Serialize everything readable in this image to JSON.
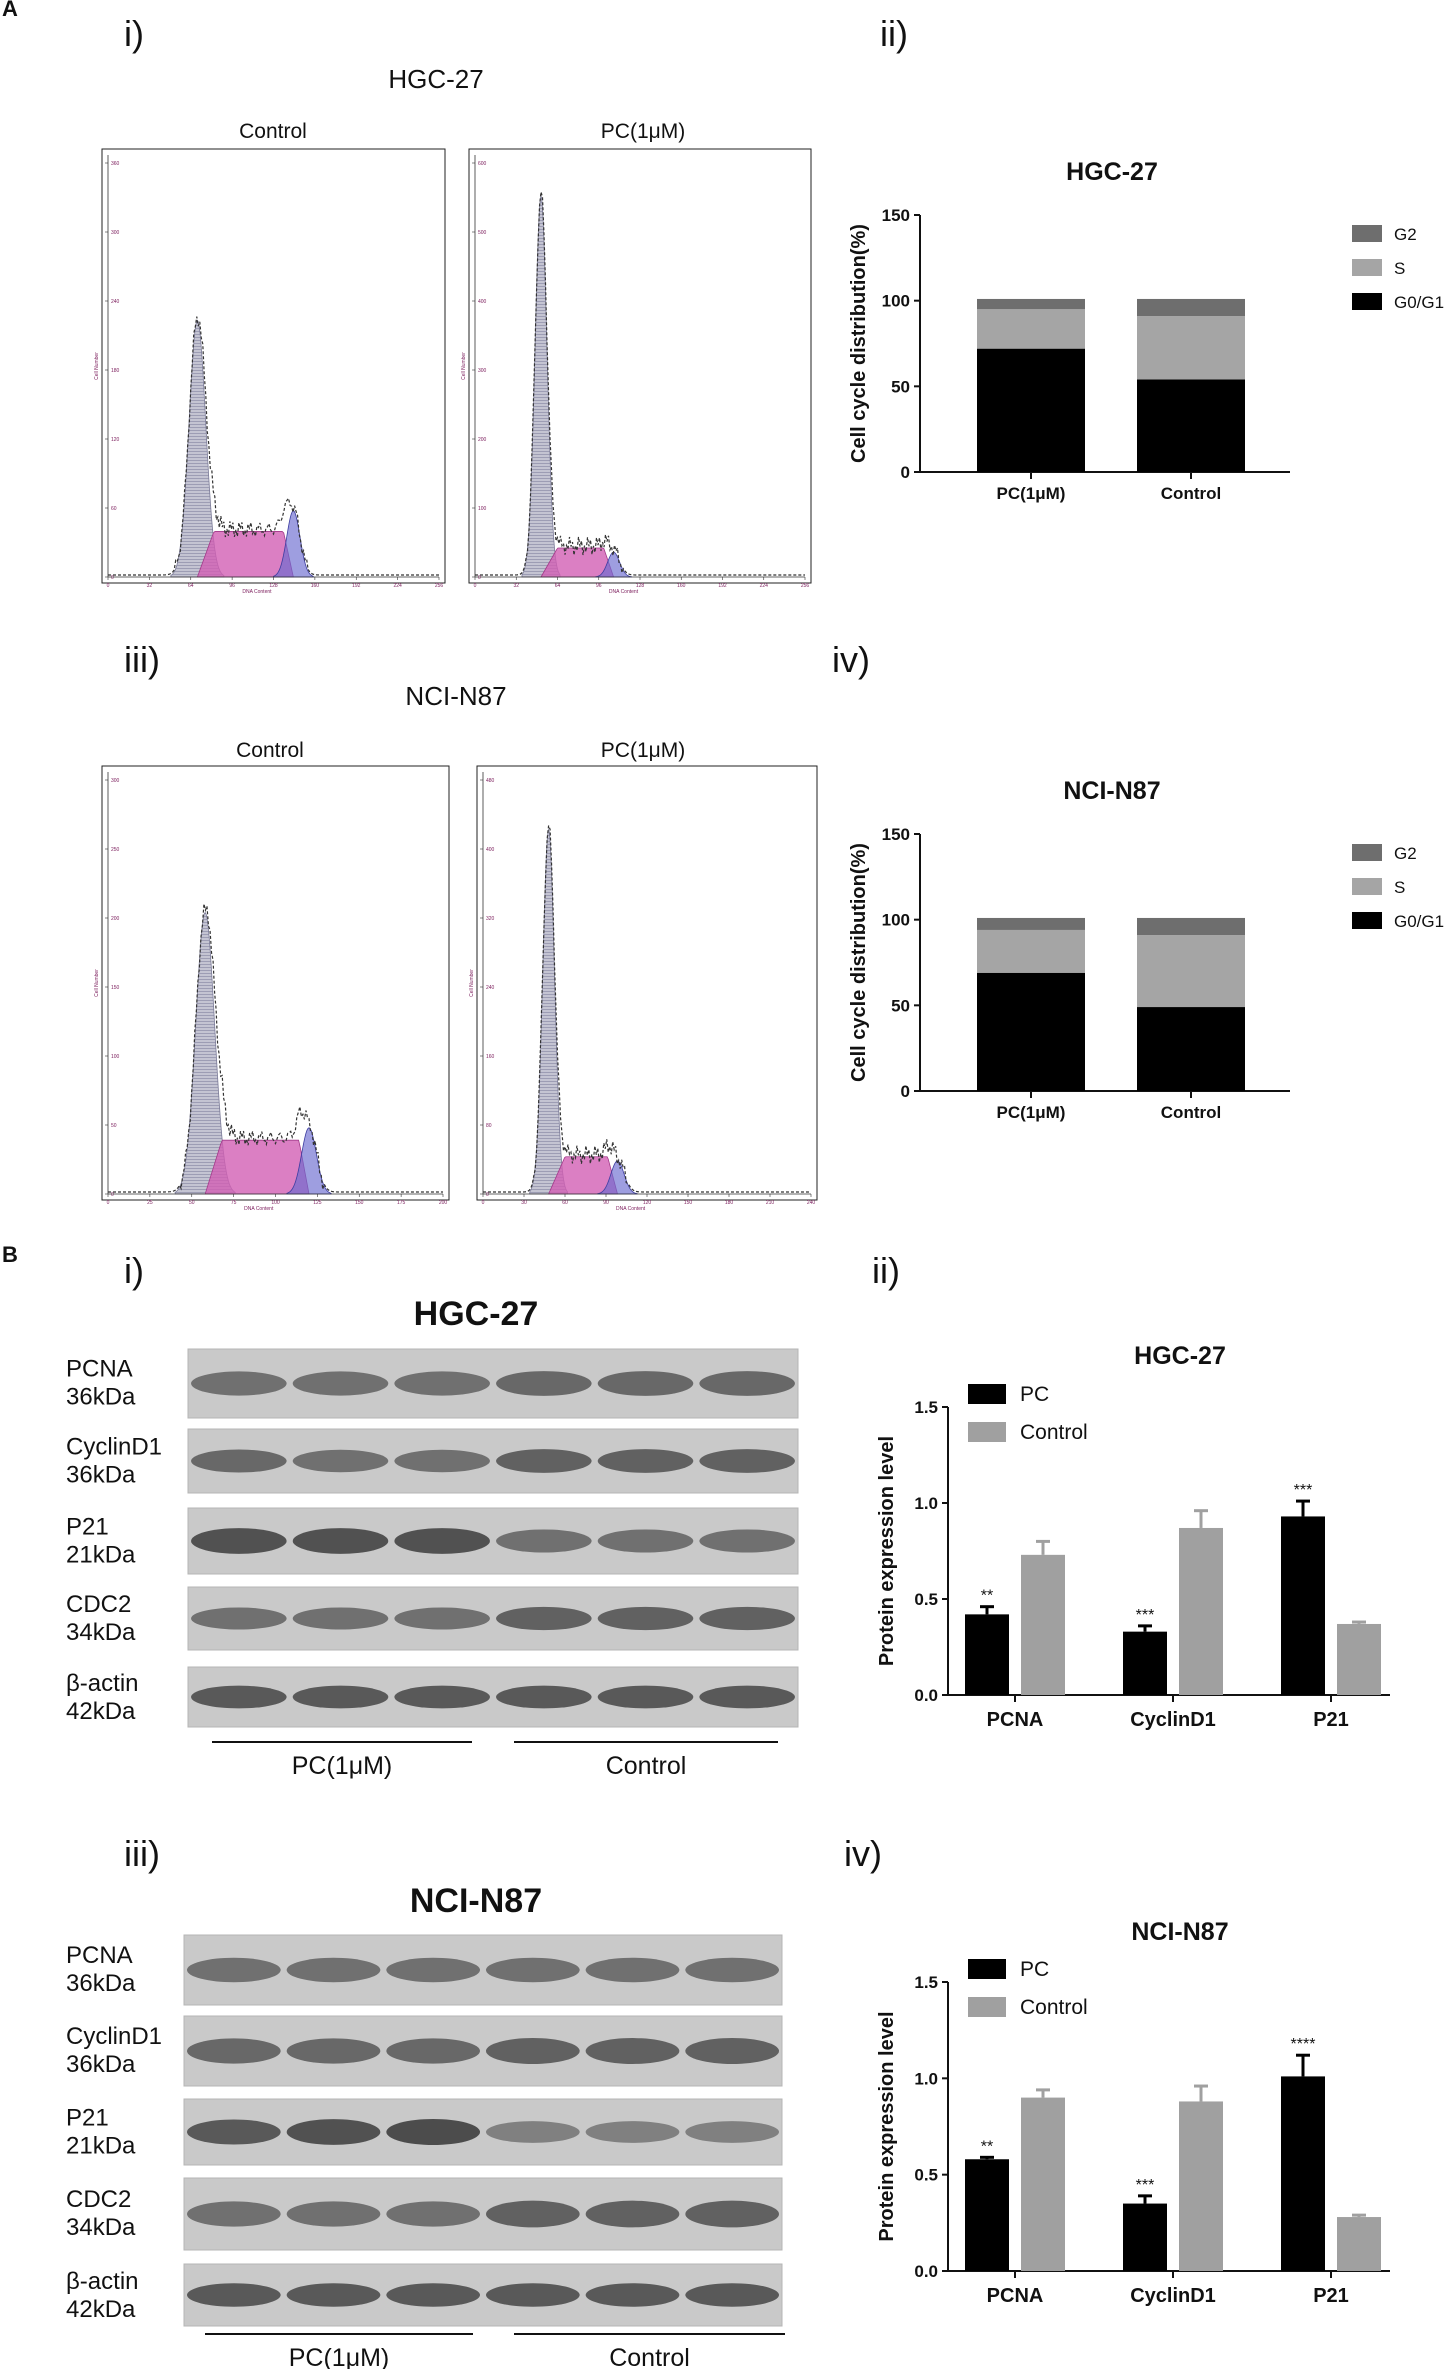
{
  "panel_A": {
    "letter": "A",
    "sub_i": "i)",
    "sub_ii": "ii)",
    "sub_iii": "iii)",
    "sub_iv": "iv)",
    "hgc_title": "HGC-27",
    "nci_title": "NCI-N87",
    "hist_labels": {
      "control": "Control",
      "pc": "PC(1μM)"
    },
    "hist_axis_text": {
      "y_label": "Cell Number",
      "x_label": "DNA Content"
    },
    "hist_ticks": {
      "hgc_control_y": [
        "0",
        "60",
        "120",
        "180",
        "240",
        "300",
        "360"
      ],
      "hgc_control_x": [
        "0",
        "32",
        "64",
        "96",
        "128",
        "160",
        "192",
        "224",
        "256"
      ],
      "hgc_pc_y": [
        "0",
        "100",
        "200",
        "300",
        "400",
        "500",
        "600"
      ],
      "hgc_pc_x": [
        "0",
        "32",
        "64",
        "96",
        "128",
        "160",
        "192",
        "224",
        "256"
      ],
      "nci_control_y": [
        "0",
        "50",
        "100",
        "150",
        "200",
        "250",
        "300"
      ],
      "nci_control_x": [
        "0",
        "25",
        "50",
        "75",
        "100",
        "125",
        "150",
        "175",
        "200"
      ],
      "nci_pc_y": [
        "0",
        "80",
        "160",
        "240",
        "320",
        "400",
        "480"
      ],
      "nci_pc_x": [
        "0",
        "30",
        "60",
        "90",
        "120",
        "150",
        "180",
        "210",
        "240"
      ]
    }
  },
  "panel_B": {
    "letter": "B",
    "sub_i": "i)",
    "sub_ii": "ii)",
    "sub_iii": "iii)",
    "sub_iv": "iv)",
    "blot_hgc": {
      "title": "HGC-27",
      "rows": [
        {
          "name": "PCNA",
          "kda": "36kDa"
        },
        {
          "name": "CyclinD1",
          "kda": "36kDa"
        },
        {
          "name": "P21",
          "kda": "21kDa"
        },
        {
          "name": "CDC2",
          "kda": "34kDa"
        },
        {
          "name": "β-actin",
          "kda": "42kDa"
        }
      ],
      "group_pc": "PC(1μM)",
      "group_control": "Control"
    },
    "blot_nci": {
      "title": "NCI-N87",
      "rows": [
        {
          "name": "PCNA",
          "kda": "36kDa"
        },
        {
          "name": "CyclinD1",
          "kda": "36kDa"
        },
        {
          "name": "P21",
          "kda": "21kDa"
        },
        {
          "name": "CDC2",
          "kda": "34kDa"
        },
        {
          "name": "β-actin",
          "kda": "42kDa"
        }
      ],
      "group_pc": "PC(1μM)",
      "group_control": "Control"
    }
  },
  "colors": {
    "g2": "#6e6e6e",
    "s": "#a5a5a5",
    "g0g1": "#000000",
    "pc_bar": "#000000",
    "control_bar": "#a0a0a0",
    "hist_fill": "#b8b8c8",
    "hist_pink": "#d25fb4",
    "hist_blue": "#6a6ad0"
  },
  "chart_data": [
    {
      "id": "hgc-cycle",
      "type": "bar",
      "stacked": true,
      "title": "HGC-27",
      "ylabel": "Cell cycle distribution(%)",
      "ylim": [
        0,
        150
      ],
      "yticks": [
        "0",
        "50",
        "100",
        "150"
      ],
      "categories": [
        "PC(1μM)",
        "Control"
      ],
      "series": [
        {
          "name": "G0/G1",
          "values": [
            72,
            54
          ]
        },
        {
          "name": "S",
          "values": [
            23,
            37
          ]
        },
        {
          "name": "G2",
          "values": [
            6,
            10
          ]
        }
      ],
      "legend_order": [
        "G2",
        "S",
        "G0/G1"
      ],
      "legend": "right"
    },
    {
      "id": "nci-cycle",
      "type": "bar",
      "stacked": true,
      "title": "NCI-N87",
      "ylabel": "Cell cycle distribution(%)",
      "ylim": [
        0,
        150
      ],
      "yticks": [
        "0",
        "50",
        "100",
        "150"
      ],
      "categories": [
        "PC(1μM)",
        "Control"
      ],
      "series": [
        {
          "name": "G0/G1",
          "values": [
            69,
            49
          ]
        },
        {
          "name": "S",
          "values": [
            25,
            42
          ]
        },
        {
          "name": "G2",
          "values": [
            7,
            10
          ]
        }
      ],
      "legend_order": [
        "G2",
        "S",
        "G0/G1"
      ],
      "legend": "right"
    },
    {
      "id": "hgc-protein",
      "type": "bar",
      "title": "HGC-27",
      "ylabel": "Protein expression level",
      "ylim": [
        0,
        1.5
      ],
      "yticks": [
        "0.0",
        "0.5",
        "1.0",
        "1.5"
      ],
      "categories": [
        "PCNA",
        "CyclinD1",
        "P21"
      ],
      "series": [
        {
          "name": "PC",
          "values": [
            0.42,
            0.33,
            0.93
          ],
          "errors": [
            0.04,
            0.03,
            0.08
          ]
        },
        {
          "name": "Control",
          "values": [
            0.73,
            0.87,
            0.37
          ],
          "errors": [
            0.07,
            0.09,
            0.01
          ]
        }
      ],
      "significance": [
        "**",
        "***",
        "***"
      ],
      "legend": "top-left"
    },
    {
      "id": "nci-protein",
      "type": "bar",
      "title": "NCI-N87",
      "ylabel": "Protein expression level",
      "ylim": [
        0,
        1.5
      ],
      "yticks": [
        "0.0",
        "0.5",
        "1.0",
        "1.5"
      ],
      "categories": [
        "PCNA",
        "CyclinD1",
        "P21"
      ],
      "series": [
        {
          "name": "PC",
          "values": [
            0.58,
            0.35,
            1.01
          ],
          "errors": [
            0.01,
            0.04,
            0.11
          ]
        },
        {
          "name": "Control",
          "values": [
            0.9,
            0.88,
            0.28
          ],
          "errors": [
            0.04,
            0.08,
            0.01
          ]
        }
      ],
      "significance": [
        "**",
        "***",
        "****"
      ],
      "legend": "top-left"
    }
  ]
}
